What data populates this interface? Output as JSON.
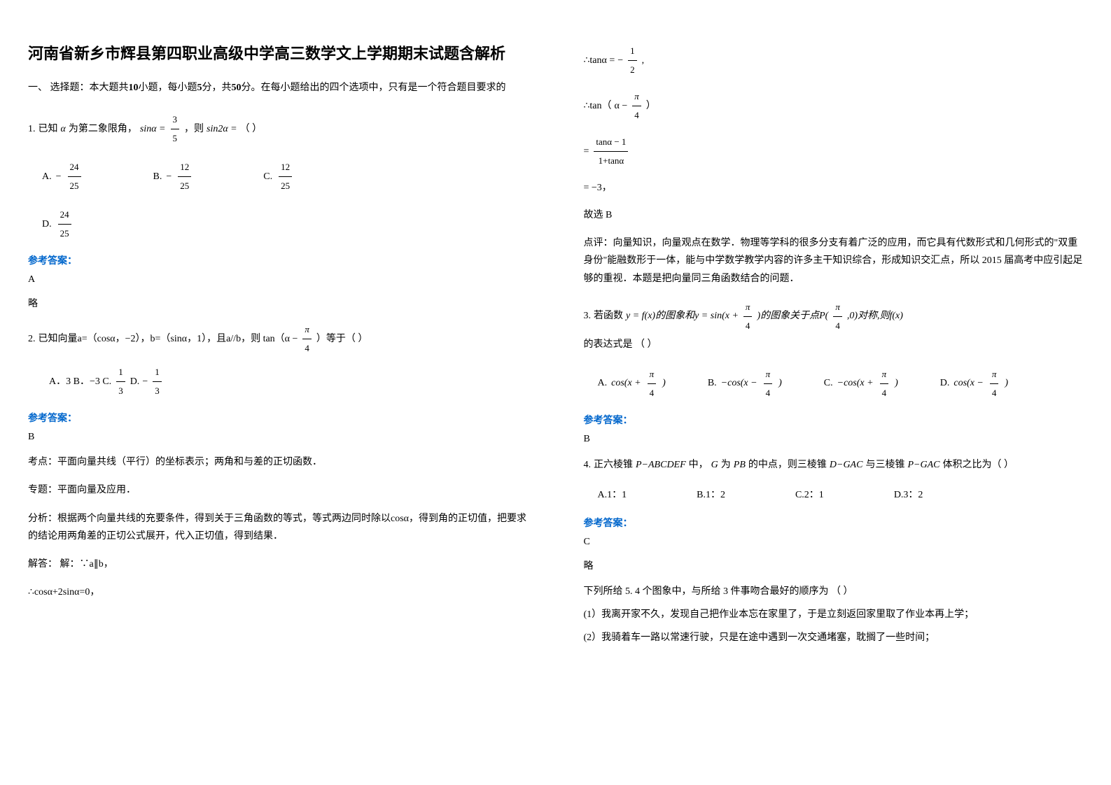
{
  "title": "河南省新乡市辉县第四职业高级中学高三数学文上学期期末试题含解析",
  "section_header": {
    "prefix": "一、 选择题：本大题共",
    "count": "10",
    "mid1": "小题，每小题",
    "points": "5",
    "mid2": "分，共",
    "total": "50",
    "suffix": "分。在每小题给出的四个选项中，只有是一个符合题目要求的"
  },
  "q1": {
    "num": "1.",
    "text_part1": "已知",
    "alpha": "α",
    "text_part2": "为第二象限角，",
    "sin_eq": "sinα = ",
    "frac_num": "3",
    "frac_den": "5",
    "text_part3": "，则",
    "sin2a": "sin2α =",
    "text_part4": "（            ）",
    "options": {
      "a_label": "A.",
      "a_num": "24",
      "a_den": "25",
      "a_neg": "−",
      "b_label": "B.",
      "b_num": "12",
      "b_den": "25",
      "b_neg": "−",
      "c_label": "C.",
      "c_num": "12",
      "c_den": "25",
      "d_label": "D.",
      "d_num": "24",
      "d_den": "25"
    },
    "answer_label": "参考答案：",
    "answer": "A",
    "note": "略"
  },
  "q2": {
    "num": "2.",
    "text": "已知向量a=（cosα，−2），b=（sinα，1），且a//b，则 tan（α − ",
    "pi": "π",
    "four": "4",
    "text_end": "）等于（        ）",
    "options": "A．3    B．−3 C.",
    "opt_c_num": "1",
    "opt_c_den": "3",
    "opt_d": "D.",
    "opt_d_neg": "−",
    "opt_d_num": "1",
    "opt_d_den": "3",
    "answer_label": "参考答案：",
    "answer": "B",
    "analysis_1": "考点：平面向量共线（平行）的坐标表示；两角和与差的正切函数．",
    "analysis_2": "专题：平面向量及应用．",
    "analysis_3": "分析：根据两个向量共线的充要条件，得到关于三角函数的等式，等式两边同时除以cosα，得到角的正切值，把要求的结论用两角差的正切公式展开，代入正切值，得到结果．",
    "solve_label": "解答：",
    "solve_1": "解：∵a∥b，",
    "solve_2": "∴cosα+2sinα=0，"
  },
  "right_col": {
    "tan_a": "∴tanα = ",
    "neg_half_num": "1",
    "neg_half_den": "2",
    "tan_expr": "∴tan（",
    "alpha_minus": "α −",
    "pi": "π",
    "four": "4",
    "close": "）",
    "frac_top": "tanα − 1",
    "frac_bot": "1+tanα",
    "equals": "=",
    "result": "= −3，",
    "conclusion": "故选 B",
    "comment_label": "点评：",
    "comment": "向量知识，向量观点在数学．物理等学科的很多分支有着广泛的应用，而它具有代数形式和几何形式的\"双重身份\"能融数形于一体，能与中学数学教学内容的许多主干知识综合，形成知识交汇点，所以 2015 届高考中应引起足够的重视．本题是把向量同三角函数结合的问题．"
  },
  "q3": {
    "num": "3.",
    "text_part1": "若函数",
    "y_eq": "y = f(x)的图象和y = sin(x + ",
    "pi": "π",
    "four": "4",
    "mid": ")的图象关于点P(",
    "four2": "4",
    "end": ",0)对称,则f(x)",
    "text_part2": "的表达式是        （      ）",
    "opt_a": "A.",
    "opt_a_expr": "cos(x + ",
    "opt_b": "B.",
    "opt_b_expr": "−cos(x − ",
    "opt_c": "C.",
    "opt_c_expr": "−cos(x + ",
    "opt_d": "D.",
    "opt_d_expr": "cos(x − ",
    "answer_label": "参考答案：",
    "answer": "B"
  },
  "q4": {
    "num": "4.",
    "text": "正六棱锥",
    "p_abcdef": "P−ABCDEF",
    "mid1": "中，",
    "g": "G",
    "mid2": "为",
    "pb": "PB",
    "mid3": "的中点，则三棱锥",
    "d_gac": "D−GAC",
    "mid4": "与三棱锥",
    "p_gac": "P−GAC",
    "end": "体积之比为（   ）",
    "opt_a": "A.1：1",
    "opt_b": "B.1：2",
    "opt_c": "C.2：1",
    "opt_d": "D.3：2",
    "answer_label": "参考答案：",
    "answer": "C",
    "note": "略"
  },
  "q5": {
    "text": "下列所给 5. 4 个图象中，与所给 3 件事吻合最好的顺序为  （  ）",
    "item1": "(1）我离开家不久，发现自己把作业本忘在家里了，于是立刻返回家里取了作业本再上学；",
    "item2": "(2）我骑着车一路以常速行驶，只是在途中遇到一次交通堵塞，耽搁了一些时间；"
  }
}
